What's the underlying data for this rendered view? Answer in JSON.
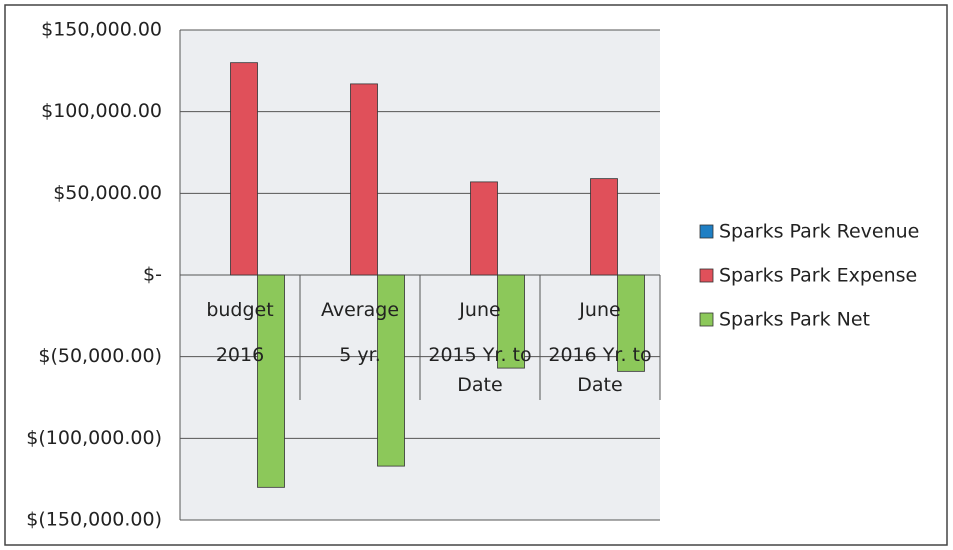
{
  "chart_data": {
    "type": "bar",
    "categories": [
      "budget\n2016",
      "Average\n5 yr.",
      "June\n2015 Yr. to\nDate",
      "June\n2016 Yr. to\nDate"
    ],
    "series": [
      {
        "name": "Sparks Park Revenue",
        "color": "#1f7fc4",
        "values": [
          0,
          0,
          0,
          0
        ]
      },
      {
        "name": "Sparks Park Expense",
        "color": "#e0505a",
        "values": [
          130000,
          117000,
          57000,
          59000
        ]
      },
      {
        "name": "Sparks Park Net",
        "color": "#8cc85a",
        "values": [
          -130000,
          -117000,
          -57000,
          -59000
        ]
      }
    ],
    "ylim": [
      -150000,
      150000
    ],
    "yticks": [
      {
        "value": -150000,
        "label": "$(150,000.00)"
      },
      {
        "value": -100000,
        "label": "$(100,000.00)"
      },
      {
        "value": -50000,
        "label": "$(50,000.00)"
      },
      {
        "value": 0,
        "label": "$-"
      },
      {
        "value": 50000,
        "label": "$50,000.00"
      },
      {
        "value": 100000,
        "label": "$100,000.00"
      },
      {
        "value": 150000,
        "label": "$150,000.00"
      }
    ],
    "grid": true,
    "legend": "right"
  }
}
